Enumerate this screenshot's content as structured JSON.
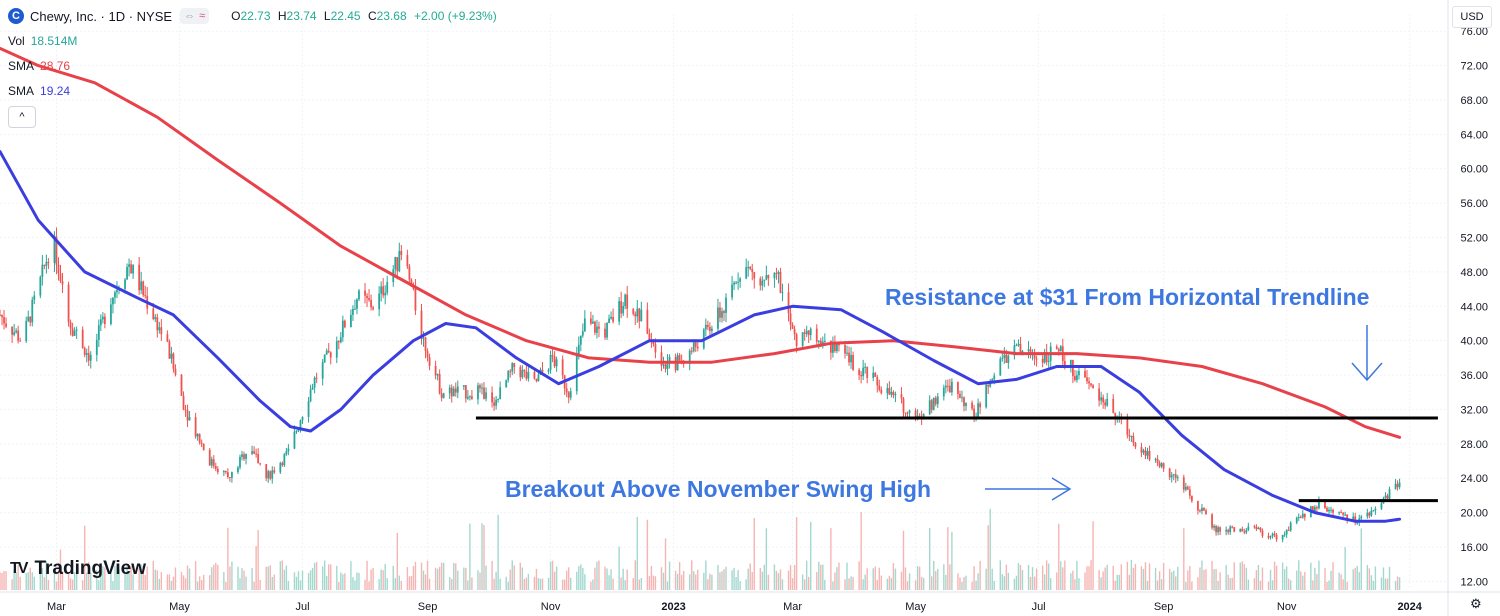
{
  "header": {
    "logo_letter": "C",
    "symbol_title": "Chewy, Inc. · 1D · NYSE",
    "o_label": "O",
    "o_value": "22.73",
    "h_label": "H",
    "h_value": "23.74",
    "l_label": "L",
    "l_value": "22.45",
    "c_label": "C",
    "c_value": "23.68",
    "change": "+2.00 (+9.23%)",
    "pill_a": "⇔",
    "pill_b": "≈"
  },
  "indicators": {
    "vol_label": "Vol",
    "vol_value": "18.514M",
    "sma1_label": "SMA",
    "sma1_value": "28.76",
    "sma2_label": "SMA",
    "sma2_value": "19.24"
  },
  "currency_button": "USD",
  "collapse_icon": "^",
  "branding": {
    "mark": "TV",
    "name": "TradingView"
  },
  "colors": {
    "up": "#26a69a",
    "down": "#ef5350",
    "sma_red": "#e8414a",
    "sma_blue": "#3a3ee0",
    "annotation": "#3d77e0",
    "trendline": "#000000",
    "vol_up": "#a3d8cf",
    "vol_down": "#f5b5b3"
  },
  "chart_data": {
    "type": "line",
    "title": "Chewy, Inc. · 1D · NYSE",
    "y_ticks": [
      "76.00",
      "72.00",
      "68.00",
      "64.00",
      "60.00",
      "56.00",
      "52.00",
      "48.00",
      "44.00",
      "40.00",
      "36.00",
      "32.00",
      "28.00",
      "24.00",
      "20.00",
      "16.00",
      "12.00"
    ],
    "ylim": [
      11,
      78
    ],
    "x_range": [
      "2022-02-01",
      "2024-01-20"
    ],
    "x_ticks": [
      {
        "date": "2022-03-01",
        "label": "Mar",
        "bold": false
      },
      {
        "date": "2022-05-01",
        "label": "May",
        "bold": false
      },
      {
        "date": "2022-07-01",
        "label": "Jul",
        "bold": false
      },
      {
        "date": "2022-09-01",
        "label": "Sep",
        "bold": false
      },
      {
        "date": "2022-11-01",
        "label": "Nov",
        "bold": false
      },
      {
        "date": "2023-01-01",
        "label": "2023",
        "bold": true
      },
      {
        "date": "2023-03-01",
        "label": "Mar",
        "bold": false
      },
      {
        "date": "2023-05-01",
        "label": "May",
        "bold": false
      },
      {
        "date": "2023-07-01",
        "label": "Jul",
        "bold": false
      },
      {
        "date": "2023-09-01",
        "label": "Sep",
        "bold": false
      },
      {
        "date": "2023-11-01",
        "label": "Nov",
        "bold": false
      },
      {
        "date": "2024-01-01",
        "label": "2024",
        "bold": true
      }
    ],
    "price_path": [
      [
        "2022-02-01",
        43
      ],
      [
        "2022-02-12",
        40
      ],
      [
        "2022-02-20",
        46
      ],
      [
        "2022-02-27",
        52
      ],
      [
        "2022-03-08",
        42
      ],
      [
        "2022-03-18",
        38
      ],
      [
        "2022-03-28",
        45
      ],
      [
        "2022-04-06",
        49
      ],
      [
        "2022-04-16",
        44
      ],
      [
        "2022-04-24",
        40
      ],
      [
        "2022-05-04",
        32
      ],
      [
        "2022-05-16",
        26
      ],
      [
        "2022-05-26",
        24
      ],
      [
        "2022-06-05",
        28
      ],
      [
        "2022-06-13",
        24
      ],
      [
        "2022-06-24",
        27
      ],
      [
        "2022-07-06",
        35
      ],
      [
        "2022-07-18",
        40
      ],
      [
        "2022-07-28",
        45
      ],
      [
        "2022-08-06",
        44
      ],
      [
        "2022-08-14",
        48
      ],
      [
        "2022-08-20",
        50
      ],
      [
        "2022-08-30",
        40
      ],
      [
        "2022-09-08",
        34
      ],
      [
        "2022-09-17",
        34
      ],
      [
        "2022-09-26",
        34
      ],
      [
        "2022-10-05",
        33
      ],
      [
        "2022-10-14",
        37
      ],
      [
        "2022-10-24",
        35
      ],
      [
        "2022-11-02",
        38
      ],
      [
        "2022-11-10",
        34
      ],
      [
        "2022-11-18",
        42
      ],
      [
        "2022-11-28",
        41
      ],
      [
        "2022-12-08",
        45
      ],
      [
        "2022-12-18",
        42
      ],
      [
        "2022-12-28",
        37
      ],
      [
        "2023-01-07",
        38
      ],
      [
        "2023-01-17",
        41
      ],
      [
        "2023-01-27",
        44
      ],
      [
        "2023-02-04",
        49
      ],
      [
        "2023-02-12",
        47
      ],
      [
        "2023-02-20",
        49
      ],
      [
        "2023-03-02",
        40
      ],
      [
        "2023-03-12",
        41
      ],
      [
        "2023-03-22",
        39
      ],
      [
        "2023-04-02",
        37
      ],
      [
        "2023-04-12",
        35
      ],
      [
        "2023-04-22",
        33
      ],
      [
        "2023-05-02",
        31
      ],
      [
        "2023-05-10",
        33
      ],
      [
        "2023-05-20",
        35
      ],
      [
        "2023-05-30",
        31
      ],
      [
        "2023-06-10",
        37
      ],
      [
        "2023-06-20",
        39
      ],
      [
        "2023-07-01",
        38
      ],
      [
        "2023-07-10",
        39
      ],
      [
        "2023-07-20",
        36
      ],
      [
        "2023-07-30",
        34
      ],
      [
        "2023-08-09",
        31
      ],
      [
        "2023-08-19",
        28
      ],
      [
        "2023-08-28",
        26
      ],
      [
        "2023-09-07",
        24
      ],
      [
        "2023-09-17",
        21
      ],
      [
        "2023-09-27",
        18
      ],
      [
        "2023-10-07",
        18
      ],
      [
        "2023-10-17",
        18
      ],
      [
        "2023-10-27",
        17
      ],
      [
        "2023-11-06",
        19
      ],
      [
        "2023-11-16",
        21
      ],
      [
        "2023-11-26",
        20
      ],
      [
        "2023-12-06",
        19
      ],
      [
        "2023-12-14",
        20
      ],
      [
        "2023-12-21",
        22
      ],
      [
        "2023-12-27",
        23.68
      ]
    ],
    "series": [
      {
        "name": "SMA",
        "value_label": "28.76",
        "points": [
          [
            "2022-02-01",
            74
          ],
          [
            "2022-02-20",
            72
          ],
          [
            "2022-03-20",
            70
          ],
          [
            "2022-04-20",
            66
          ],
          [
            "2022-05-20",
            61
          ],
          [
            "2022-06-20",
            56
          ],
          [
            "2022-07-20",
            51
          ],
          [
            "2022-08-20",
            47
          ],
          [
            "2022-09-20",
            43
          ],
          [
            "2022-10-20",
            40
          ],
          [
            "2022-11-20",
            38
          ],
          [
            "2022-12-20",
            37.5
          ],
          [
            "2023-01-20",
            37.5
          ],
          [
            "2023-02-20",
            38.5
          ],
          [
            "2023-03-20",
            39.7
          ],
          [
            "2023-04-20",
            40
          ],
          [
            "2023-05-20",
            39.3
          ],
          [
            "2023-06-20",
            38.5
          ],
          [
            "2023-07-20",
            38.5
          ],
          [
            "2023-08-20",
            38
          ],
          [
            "2023-09-20",
            37
          ],
          [
            "2023-10-20",
            35
          ],
          [
            "2023-11-20",
            32.3
          ],
          [
            "2023-12-10",
            30
          ],
          [
            "2023-12-27",
            28.76
          ]
        ]
      },
      {
        "name": "SMA",
        "value_label": "19.24",
        "points": [
          [
            "2022-02-01",
            62
          ],
          [
            "2022-02-20",
            54
          ],
          [
            "2022-03-15",
            48
          ],
          [
            "2022-04-10",
            45
          ],
          [
            "2022-04-28",
            43
          ],
          [
            "2022-05-20",
            38
          ],
          [
            "2022-06-10",
            33
          ],
          [
            "2022-06-25",
            30
          ],
          [
            "2022-07-05",
            29.5
          ],
          [
            "2022-07-20",
            32
          ],
          [
            "2022-08-05",
            36
          ],
          [
            "2022-08-25",
            40
          ],
          [
            "2022-09-10",
            42
          ],
          [
            "2022-09-25",
            41.5
          ],
          [
            "2022-10-15",
            38
          ],
          [
            "2022-11-05",
            35
          ],
          [
            "2022-11-25",
            37
          ],
          [
            "2022-12-20",
            40
          ],
          [
            "2023-01-15",
            40
          ],
          [
            "2023-02-10",
            43
          ],
          [
            "2023-03-01",
            44
          ],
          [
            "2023-03-25",
            43.6
          ],
          [
            "2023-04-15",
            41
          ],
          [
            "2023-05-10",
            37.7
          ],
          [
            "2023-06-01",
            35
          ],
          [
            "2023-06-20",
            35.5
          ],
          [
            "2023-07-10",
            37
          ],
          [
            "2023-08-01",
            37
          ],
          [
            "2023-08-20",
            34
          ],
          [
            "2023-09-10",
            29
          ],
          [
            "2023-10-01",
            25
          ],
          [
            "2023-10-25",
            22
          ],
          [
            "2023-11-15",
            20
          ],
          [
            "2023-12-05",
            19
          ],
          [
            "2023-12-20",
            19
          ],
          [
            "2023-12-27",
            19.24
          ]
        ]
      }
    ],
    "trendlines": [
      {
        "from": [
          "2022-09-25",
          31
        ],
        "to": [
          "2024-01-15",
          31
        ]
      },
      {
        "from": [
          "2023-11-07",
          21.4
        ],
        "to": [
          "2024-01-15",
          21.4
        ]
      }
    ],
    "annotations": [
      {
        "text": "Resistance at $31 From Horizontal Trendline",
        "arrow": "down"
      },
      {
        "text": "Breakout Above November Swing High",
        "arrow": "right"
      }
    ]
  }
}
